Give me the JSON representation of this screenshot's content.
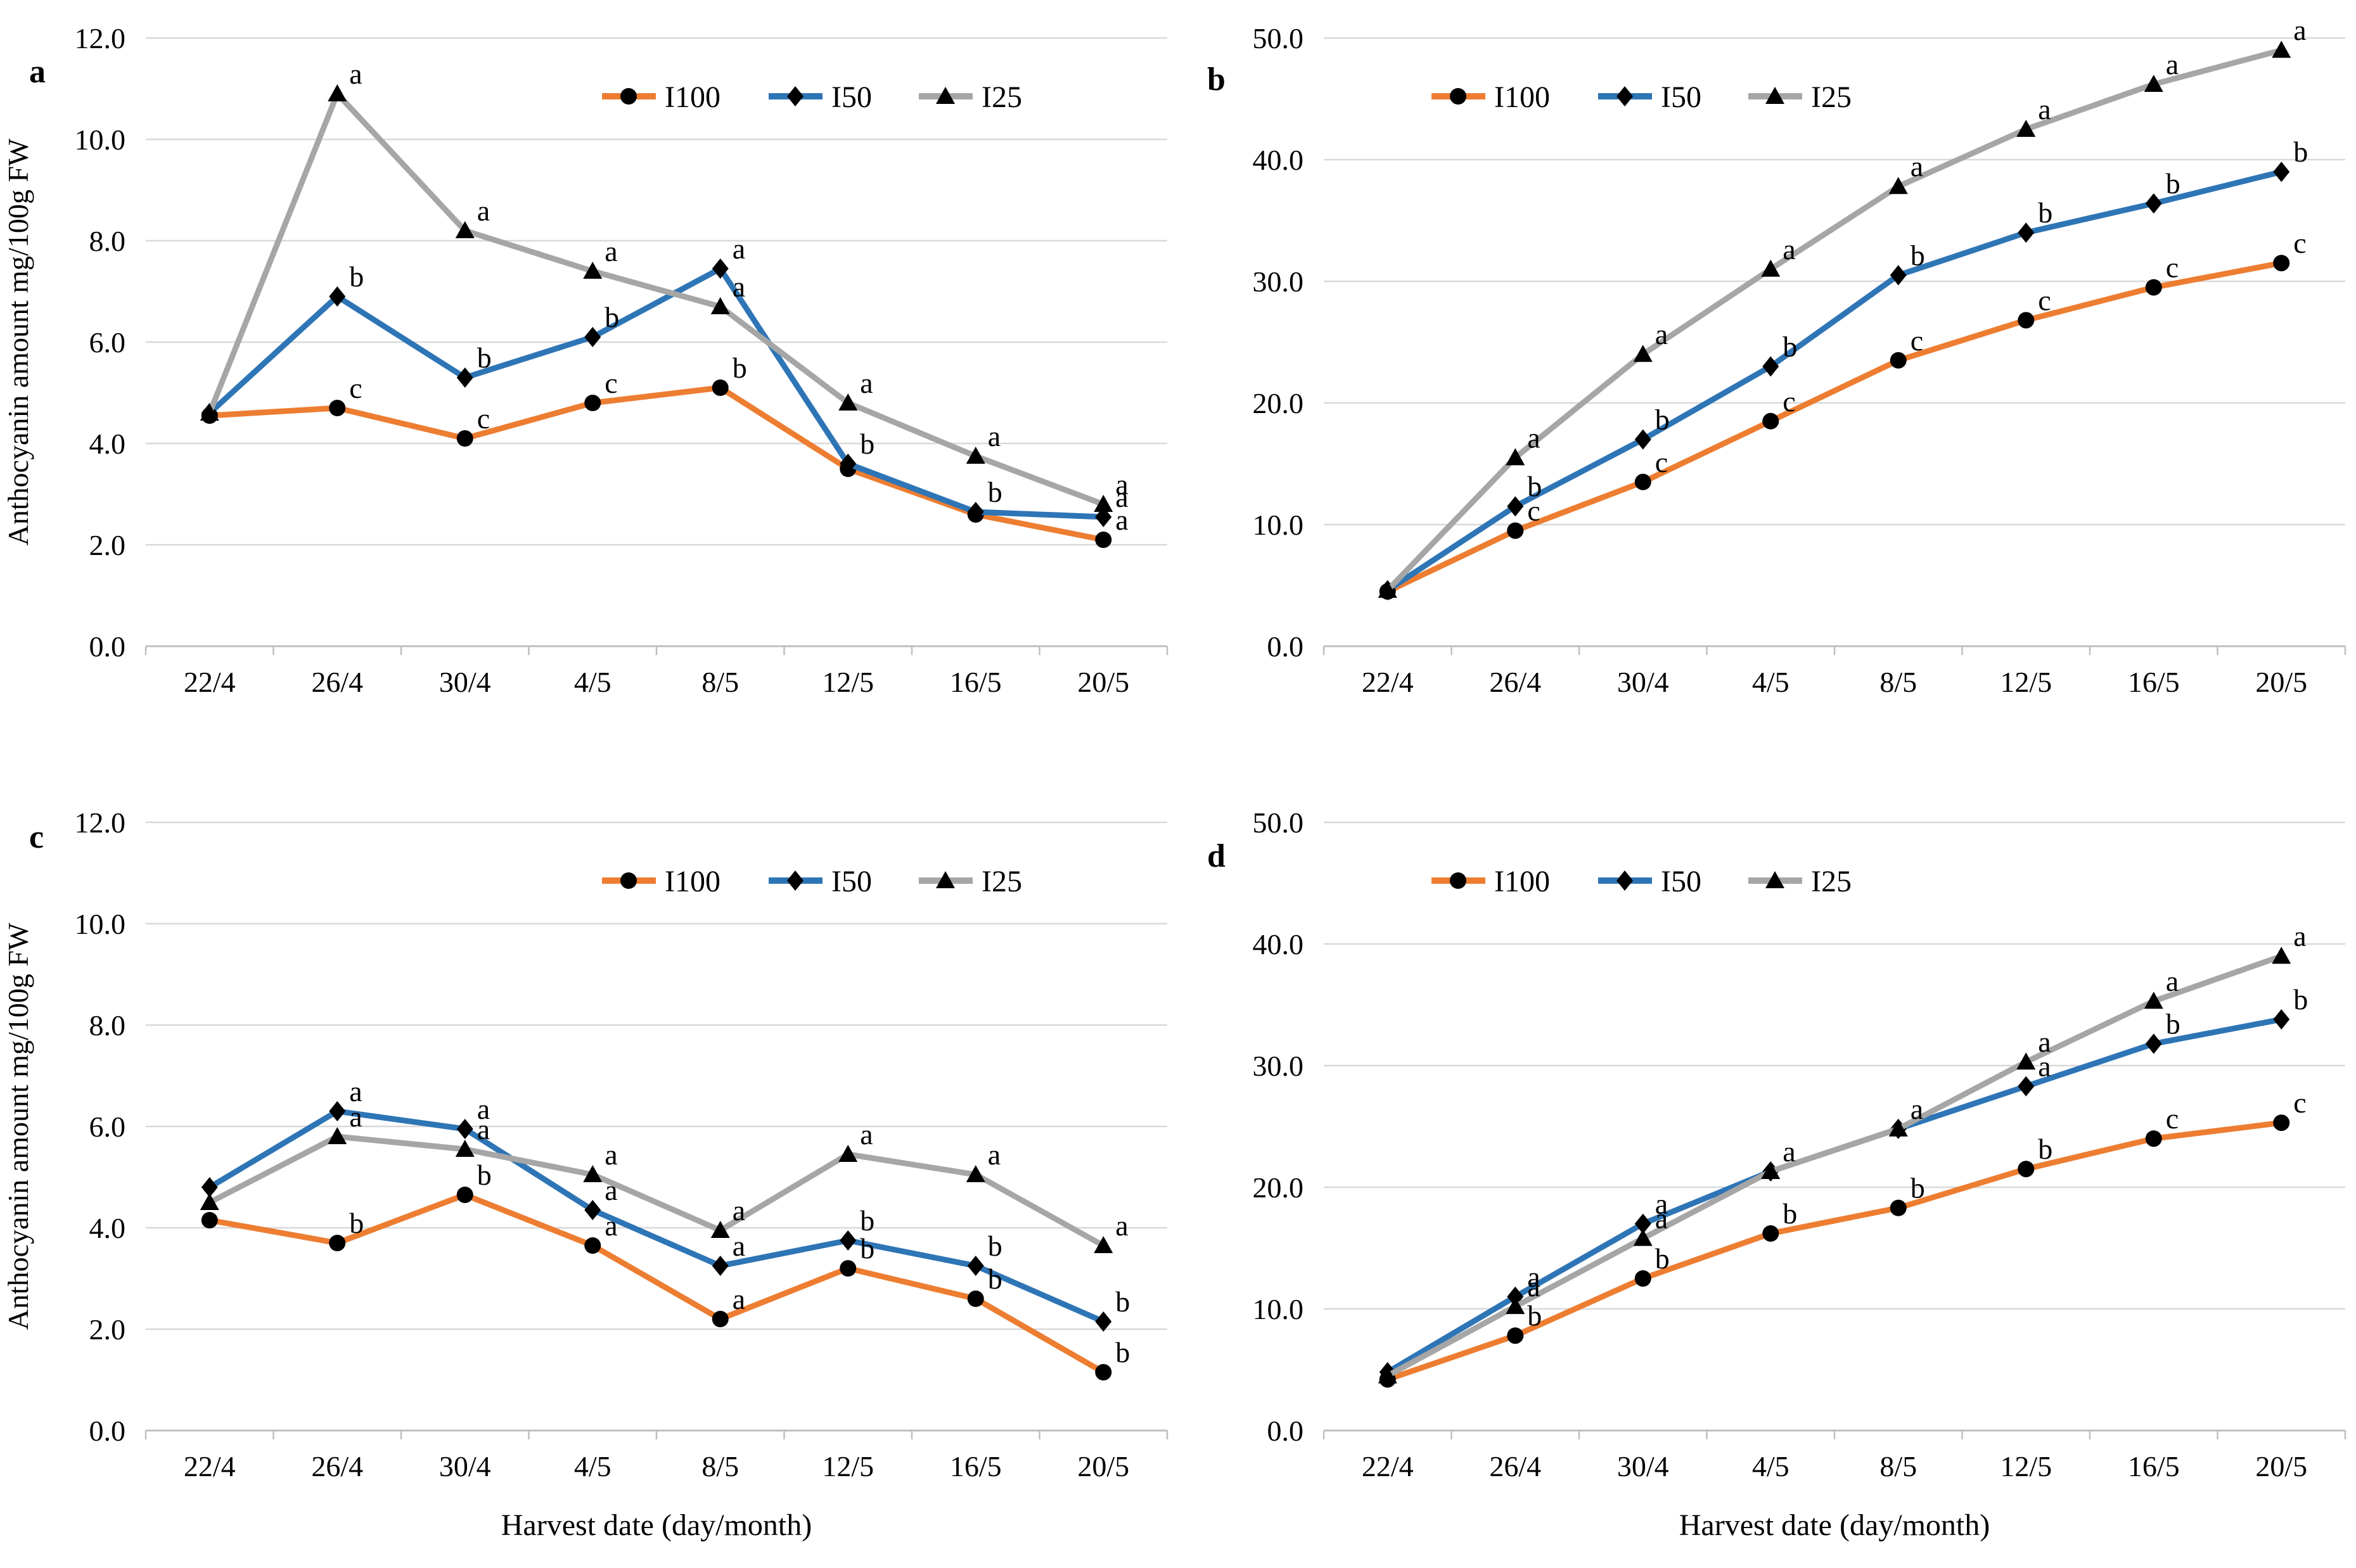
{
  "figure": {
    "background_color": "#FFFFFF",
    "grid_color": "#D9D9D9",
    "axis_color": "#BFBFBF",
    "text_color": "#000000",
    "marker_color": "#000000",
    "x_axis_title": "Harvest date (day/month)",
    "y_axis_title": "Anthocyanin amount mg/100g FW",
    "legend": [
      {
        "label": "I100",
        "color": "#ED7D31",
        "marker": "circle"
      },
      {
        "label": "I50",
        "color": "#2E75B6",
        "marker": "diamond"
      },
      {
        "label": "I25",
        "color": "#A6A6A6",
        "marker": "triangle"
      }
    ]
  },
  "chart_data": [
    {
      "panel_letter": "a",
      "type": "line",
      "categories": [
        "22/4",
        "26/4",
        "30/4",
        "4/5",
        "8/5",
        "12/5",
        "16/5",
        "20/5"
      ],
      "ylim": [
        0,
        12
      ],
      "ytick_step": 2,
      "grid": true,
      "legend_position": "top-right",
      "ylabel": "Anthocyanin amount mg/100g FW",
      "xlabel": "",
      "series": [
        {
          "name": "I100",
          "color": "#ED7D31",
          "marker": "circle",
          "values": [
            4.55,
            4.7,
            4.1,
            4.8,
            5.1,
            3.5,
            2.6,
            2.1
          ],
          "point_labels": [
            "",
            "c",
            "c",
            "c",
            "b",
            "",
            "",
            "a"
          ]
        },
        {
          "name": "I50",
          "color": "#2E75B6",
          "marker": "diamond",
          "values": [
            4.6,
            6.9,
            5.3,
            6.1,
            7.45,
            3.6,
            2.65,
            2.55
          ],
          "point_labels": [
            "",
            "b",
            "b",
            "b",
            "a",
            "b",
            "b",
            "a"
          ]
        },
        {
          "name": "I25",
          "color": "#A6A6A6",
          "marker": "triangle",
          "values": [
            4.6,
            10.9,
            8.2,
            7.4,
            6.7,
            4.8,
            3.75,
            2.8
          ],
          "point_labels": [
            "",
            "a",
            "a",
            "a",
            "a",
            "a",
            "a",
            "a"
          ]
        }
      ]
    },
    {
      "panel_letter": "b",
      "type": "line",
      "categories": [
        "22/4",
        "26/4",
        "30/4",
        "4/5",
        "8/5",
        "12/5",
        "16/5",
        "20/5"
      ],
      "ylim": [
        0,
        50
      ],
      "ytick_step": 10,
      "grid": true,
      "legend_position": "top-left",
      "ylabel": "",
      "xlabel": "",
      "series": [
        {
          "name": "I100",
          "color": "#ED7D31",
          "marker": "circle",
          "values": [
            4.5,
            9.5,
            13.5,
            18.5,
            23.5,
            26.8,
            29.5,
            31.5
          ],
          "point_labels": [
            "",
            "c",
            "c",
            "c",
            "c",
            "c",
            "c",
            "c"
          ]
        },
        {
          "name": "I50",
          "color": "#2E75B6",
          "marker": "diamond",
          "values": [
            4.6,
            11.5,
            17.0,
            23.0,
            30.5,
            34.0,
            36.4,
            39.0
          ],
          "point_labels": [
            "",
            "b",
            "b",
            "b",
            "b",
            "b",
            "b",
            "b"
          ]
        },
        {
          "name": "I25",
          "color": "#A6A6A6",
          "marker": "triangle",
          "values": [
            4.6,
            15.5,
            24.0,
            31.0,
            37.8,
            42.5,
            46.2,
            49.0
          ],
          "point_labels": [
            "",
            "a",
            "a",
            "a",
            "a",
            "a",
            "a",
            "a"
          ]
        }
      ]
    },
    {
      "panel_letter": "c",
      "type": "line",
      "categories": [
        "22/4",
        "26/4",
        "30/4",
        "4/5",
        "8/5",
        "12/5",
        "16/5",
        "20/5"
      ],
      "ylim": [
        0,
        12
      ],
      "ytick_step": 2,
      "grid": true,
      "legend_position": "top-right",
      "ylabel": "Anthocyanin amount mg/100g FW",
      "xlabel": "Harvest date (day/month)",
      "series": [
        {
          "name": "I100",
          "color": "#ED7D31",
          "marker": "circle",
          "values": [
            4.15,
            3.7,
            4.65,
            3.65,
            2.2,
            3.2,
            2.6,
            1.15
          ],
          "point_labels": [
            "",
            "b",
            "b",
            "a",
            "a",
            "b",
            "b",
            "b"
          ]
        },
        {
          "name": "I50",
          "color": "#2E75B6",
          "marker": "diamond",
          "values": [
            4.8,
            6.3,
            5.95,
            4.35,
            3.25,
            3.75,
            3.25,
            2.15
          ],
          "point_labels": [
            "",
            "a",
            "a",
            "a",
            "a",
            "b",
            "b",
            "b"
          ]
        },
        {
          "name": "I25",
          "color": "#A6A6A6",
          "marker": "triangle",
          "values": [
            4.5,
            5.8,
            5.55,
            5.05,
            3.95,
            5.45,
            5.05,
            3.65
          ],
          "point_labels": [
            "",
            "a",
            "a",
            "a",
            "a",
            "a",
            "a",
            "a"
          ]
        }
      ]
    },
    {
      "panel_letter": "d",
      "type": "line",
      "categories": [
        "22/4",
        "26/4",
        "30/4",
        "4/5",
        "8/5",
        "12/5",
        "16/5",
        "20/5"
      ],
      "ylim": [
        0,
        50
      ],
      "ytick_step": 10,
      "grid": true,
      "legend_position": "top-left",
      "ylabel": "",
      "xlabel": "Harvest date (day/month)",
      "series": [
        {
          "name": "I100",
          "color": "#ED7D31",
          "marker": "circle",
          "values": [
            4.2,
            7.8,
            12.5,
            16.2,
            18.3,
            21.5,
            24.0,
            25.3
          ],
          "point_labels": [
            "",
            "b",
            "b",
            "b",
            "b",
            "b",
            "c",
            "c"
          ]
        },
        {
          "name": "I50",
          "color": "#2E75B6",
          "marker": "diamond",
          "values": [
            4.8,
            11.0,
            17.0,
            21.3,
            24.8,
            28.3,
            31.8,
            33.8
          ],
          "point_labels": [
            "",
            "a",
            "a",
            "",
            "",
            "a",
            "b",
            "b"
          ]
        },
        {
          "name": "I25",
          "color": "#A6A6A6",
          "marker": "triangle",
          "values": [
            4.5,
            10.2,
            15.8,
            21.3,
            24.8,
            30.3,
            35.3,
            39.0
          ],
          "point_labels": [
            "",
            "a",
            "a",
            "a",
            "a",
            "a",
            "a",
            "a"
          ]
        }
      ]
    }
  ]
}
